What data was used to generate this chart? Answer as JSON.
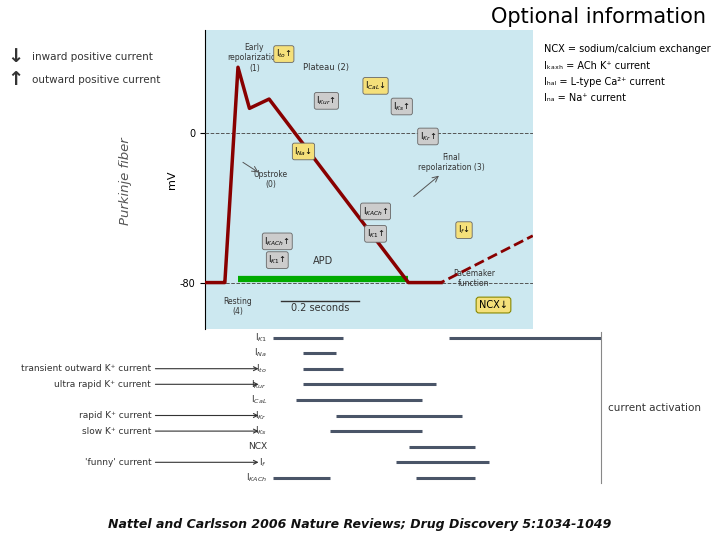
{
  "title": "Optional information",
  "title_fontsize": 15,
  "bg_color": "#ffffff",
  "ap_bg_color": "#cce8f0",
  "legend_ncx": "NCX = sodium/calcium exchanger",
  "legend_ikach": "Iₖₐₓₕ = ACh K⁺ current",
  "legend_ical": "Iₕₐₗ = L-type Ca²⁺ current",
  "legend_ina": "Iₙₐ = Na⁺ current",
  "citation": "Nattel and Carlsson 2006 Nature Reviews; Drug Discovery 5:1034-1049",
  "bar_color": "#4a5568",
  "bar_lw": 2.2,
  "ap_xlim": [
    0,
    1
  ],
  "ap_ylim": [
    -105,
    55
  ]
}
